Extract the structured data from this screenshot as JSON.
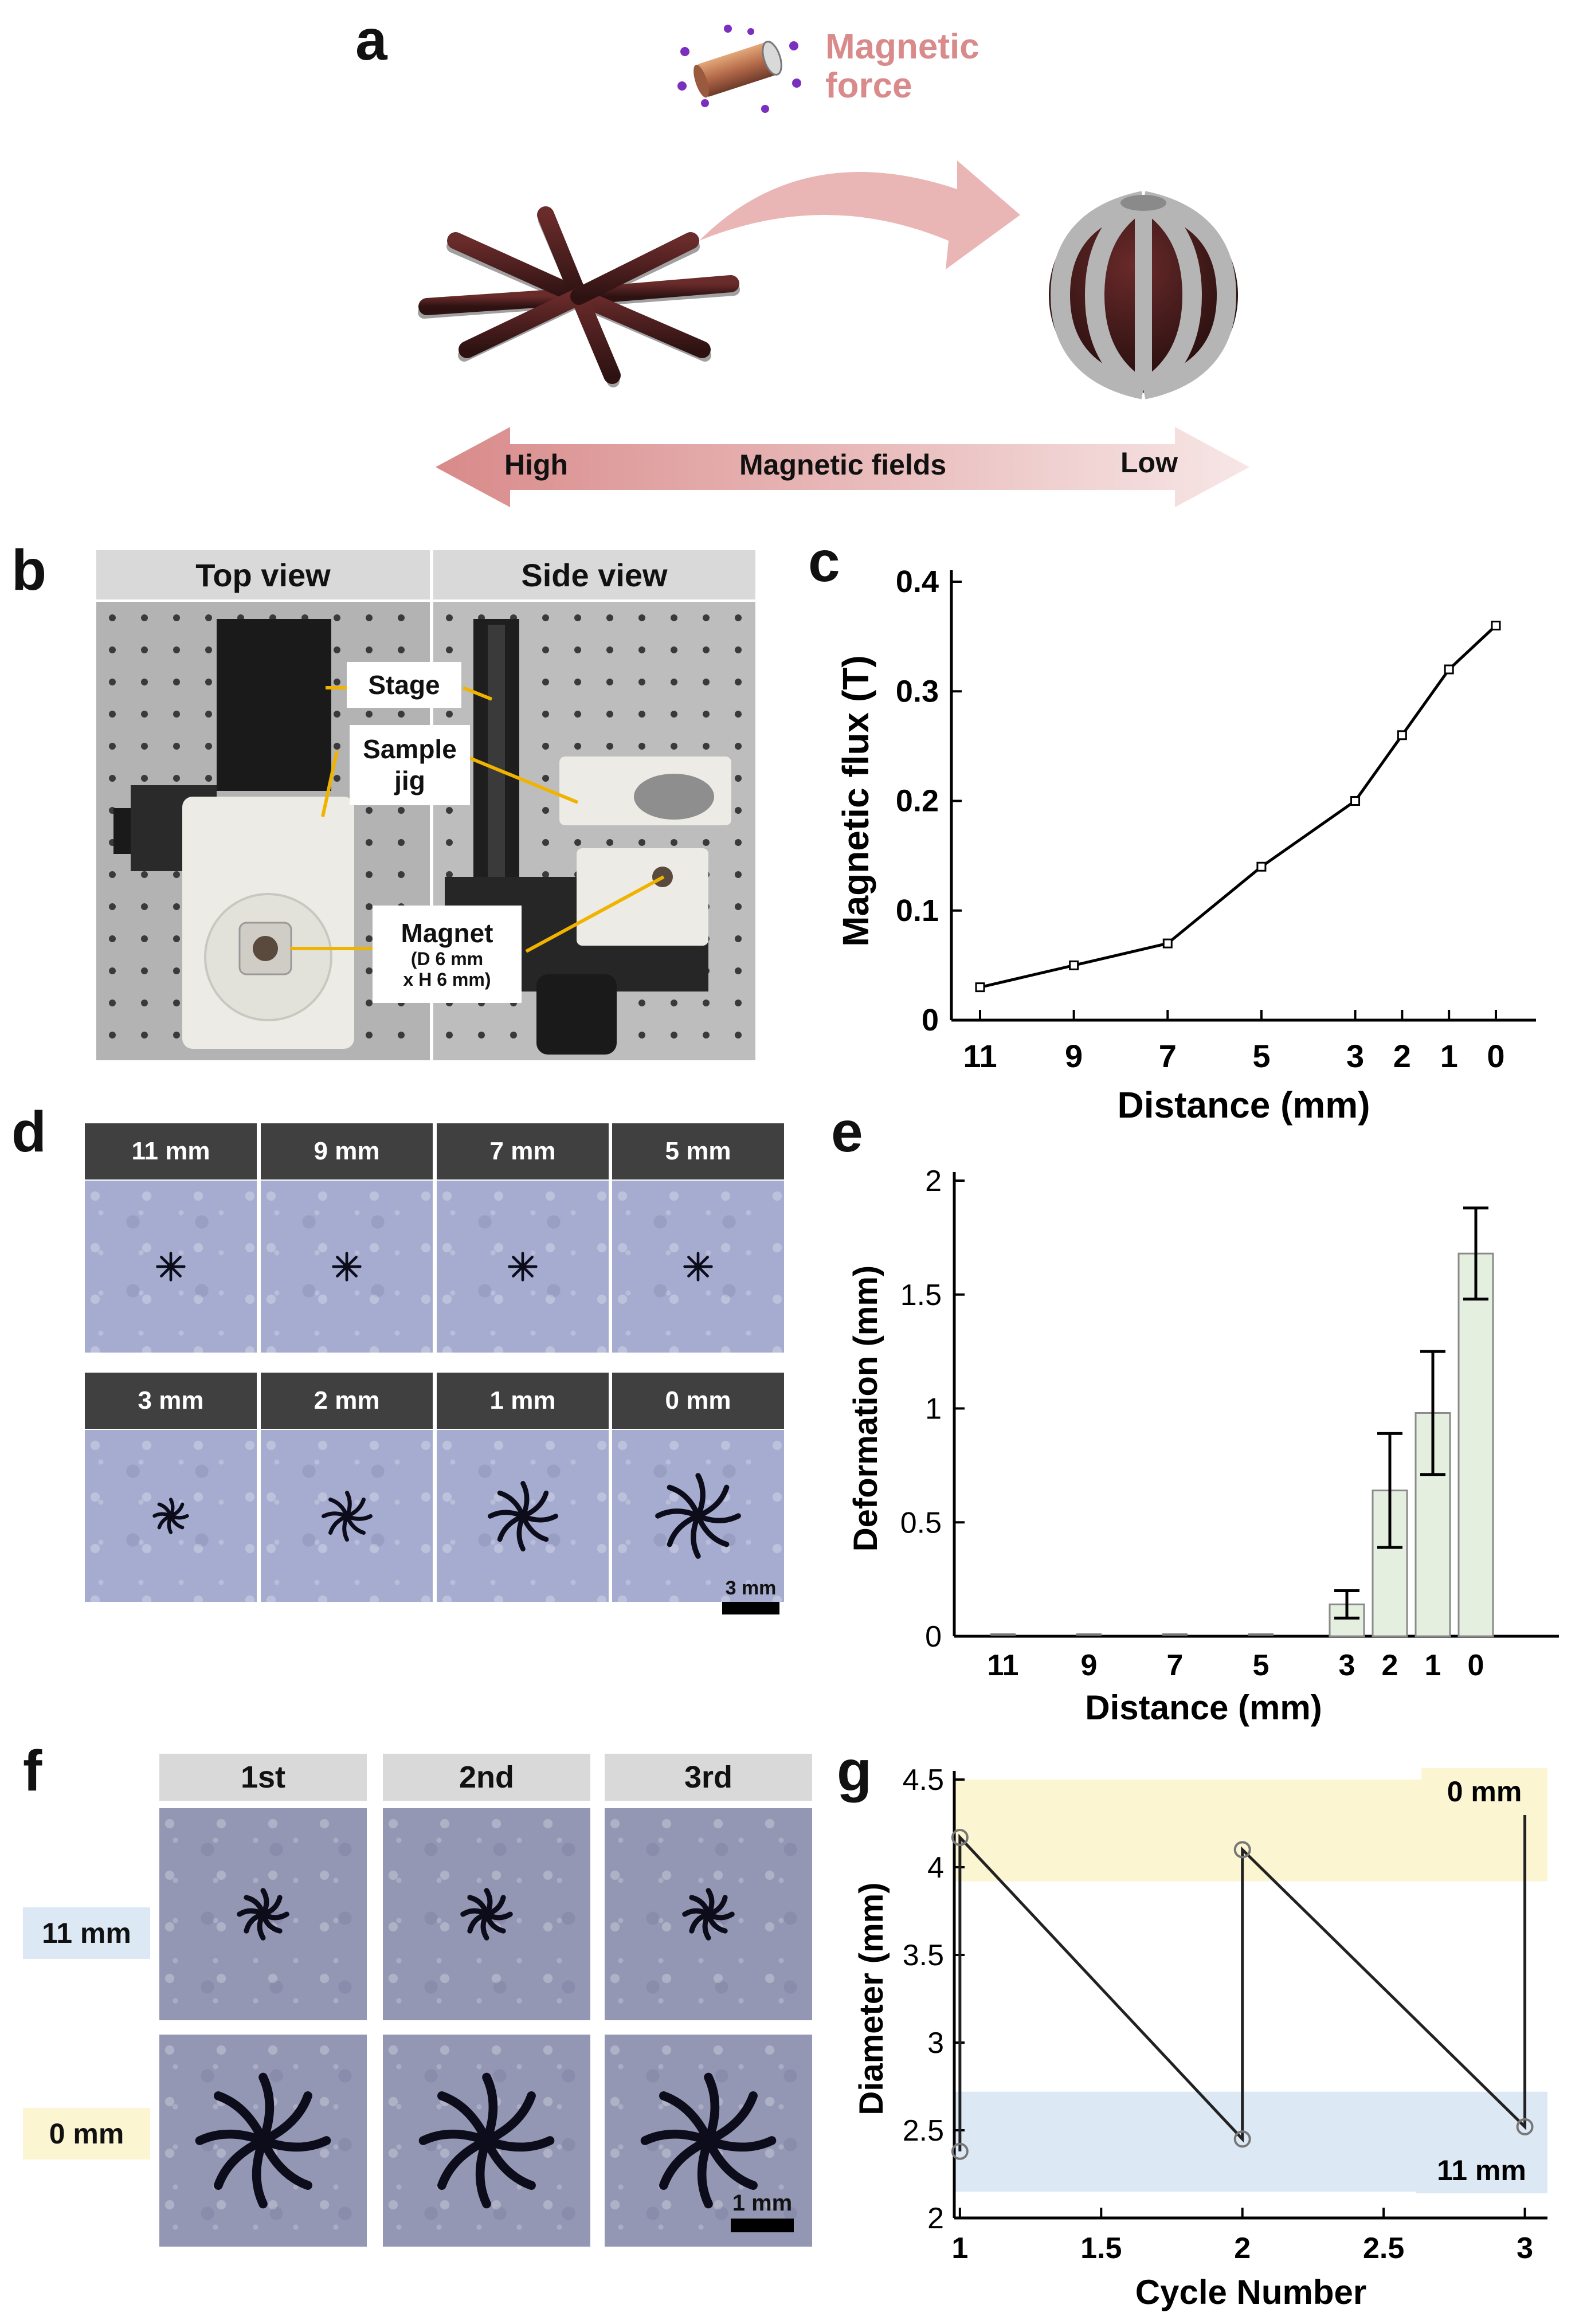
{
  "figure": {
    "panel_a": {
      "label": "a",
      "force_label_line1": "Magnetic",
      "force_label_line2": "force",
      "arrow_left": "High",
      "arrow_center": "Magnetic fields",
      "arrow_right": "Low",
      "colors": {
        "accent": "#d98a8a",
        "arrow_fill": "#eab5b5",
        "gripper_body": "#4a1f1f",
        "gripper_edge": "#9a9a9a"
      }
    },
    "panel_b": {
      "label": "b",
      "headers": [
        "Top view",
        "Side view"
      ],
      "callouts": {
        "stage": "Stage",
        "sample_jig_1": "Sample",
        "sample_jig_2": "jig",
        "magnet": "Magnet",
        "magnet_dim1": "(D 6 mm",
        "magnet_dim2": "x H 6 mm)"
      },
      "colors": {
        "callout_line": "#f0b400"
      }
    },
    "panel_d": {
      "label": "d",
      "row1": [
        "11 mm",
        "9 mm",
        "7 mm",
        "5 mm"
      ],
      "row2": [
        "3 mm",
        "2 mm",
        "1 mm",
        "0 mm"
      ],
      "scale_bar": "3 mm"
    },
    "panel_f": {
      "label": "f",
      "headers": [
        "1st",
        "2nd",
        "3rd"
      ],
      "row_labels": [
        "11 mm",
        "0 mm"
      ],
      "scale_bar": "1 mm",
      "colors": {
        "blue_tag": "#dce9f5",
        "yellow_tag": "#fcf5d2"
      }
    }
  },
  "chart_data": [
    {
      "panel": "c",
      "type": "line",
      "xlabel": "Distance (mm)",
      "ylabel": "Magnetic flux (T)",
      "categories": [
        "11",
        "9",
        "7",
        "5",
        "3",
        "2",
        "1",
        "0"
      ],
      "x": [
        11,
        9,
        7,
        5,
        3,
        2,
        1,
        0
      ],
      "values": [
        0.03,
        0.05,
        0.07,
        0.14,
        0.2,
        0.26,
        0.32,
        0.36
      ],
      "ylim": [
        0,
        0.4
      ],
      "yticks": [
        "0",
        "0.1",
        "0.2",
        "0.3",
        "0.4"
      ]
    },
    {
      "panel": "e",
      "type": "bar",
      "xlabel": "Distance (mm)",
      "ylabel": "Deformation (mm)",
      "categories": [
        "11",
        "9",
        "7",
        "5",
        "3",
        "2",
        "1",
        "0"
      ],
      "x": [
        11,
        9,
        7,
        5,
        3,
        2,
        1,
        0
      ],
      "values": [
        0,
        0,
        0,
        0,
        0.14,
        0.64,
        0.98,
        1.68
      ],
      "errors": [
        0,
        0,
        0,
        0,
        0.06,
        0.25,
        0.27,
        0.2
      ],
      "ylim": [
        0,
        2
      ],
      "yticks": [
        "0",
        "0.5",
        "1",
        "1.5",
        "2"
      ],
      "bar_color": "#e4efdf"
    },
    {
      "panel": "g",
      "type": "line",
      "xlabel": "Cycle Number",
      "ylabel": "Diameter (mm)",
      "x": [
        1,
        1,
        2,
        2,
        3,
        3
      ],
      "values": [
        2.38,
        4.17,
        2.45,
        4.1,
        2.52,
        4.38
      ],
      "xlim": [
        0.98,
        3.08
      ],
      "ylim": [
        2,
        4.5
      ],
      "xticks": [
        "1",
        "1.5",
        "2",
        "2.5",
        "3"
      ],
      "yticks": [
        "2",
        "2.5",
        "3",
        "3.5",
        "4",
        "4.5"
      ],
      "band_top_label": "0 mm",
      "band_bottom_label": "11 mm",
      "band_top_range": [
        3.92,
        4.5
      ],
      "band_bottom_range": [
        2.15,
        2.72
      ]
    }
  ]
}
